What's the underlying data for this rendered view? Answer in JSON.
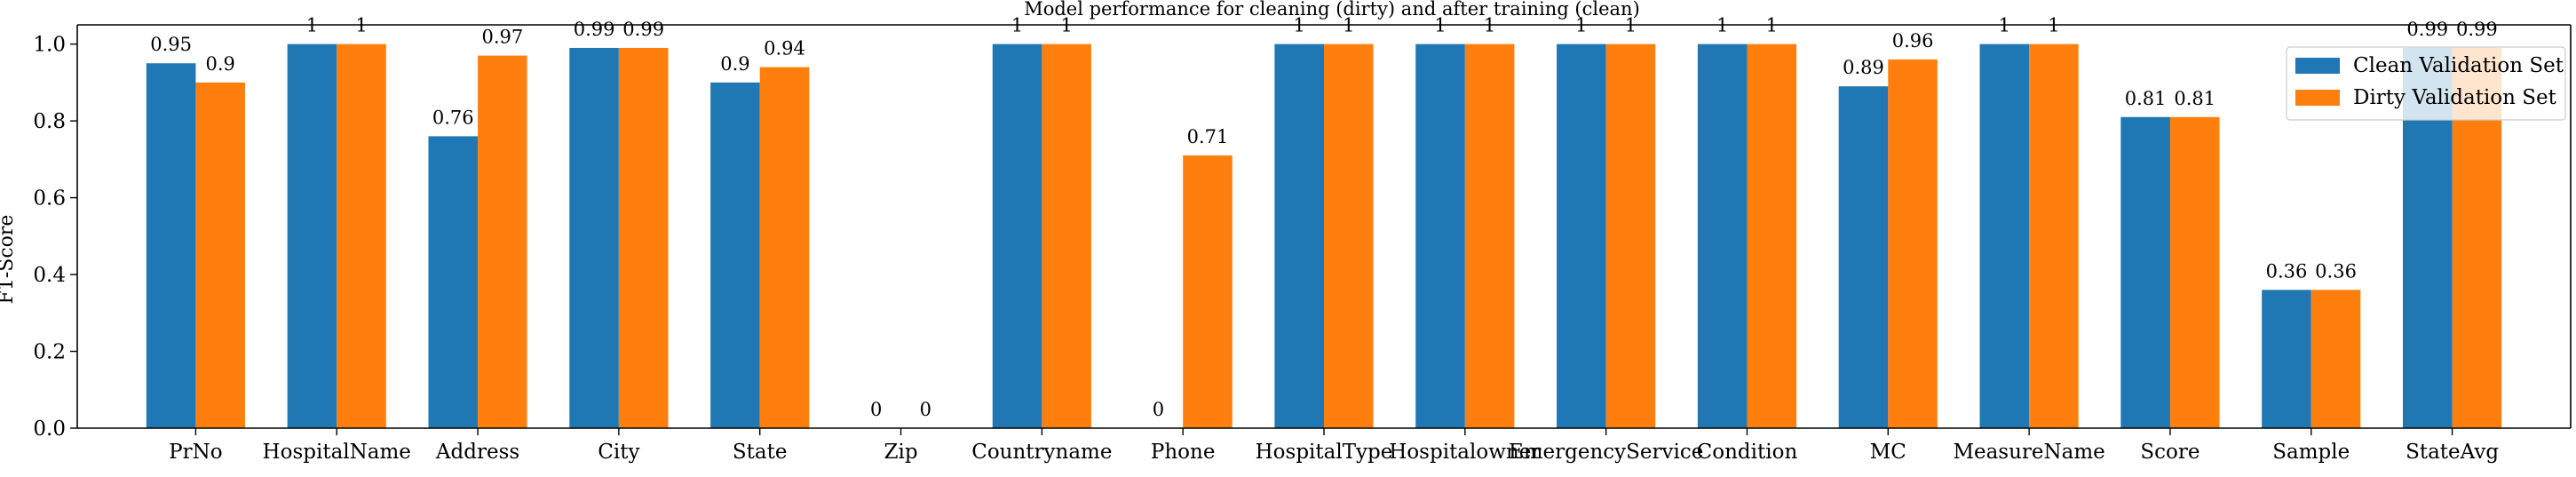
{
  "chart_data": {
    "type": "bar",
    "title": "Model performance for cleaning (dirty) and after training (clean)",
    "xlabel": "",
    "ylabel": "F1-Score",
    "ylim": [
      0,
      1.05
    ],
    "yticks": [
      0.0,
      0.2,
      0.4,
      0.6,
      0.8,
      1.0
    ],
    "ytick_labels": [
      "0.0",
      "0.2",
      "0.4",
      "0.6",
      "0.8",
      "1.0"
    ],
    "categories": [
      "PrNo",
      "HospitalName",
      "Address",
      "City",
      "State",
      "Zip",
      "Countryname",
      "Phone",
      "HospitalType",
      "Hospitalowner",
      "EmergencyService",
      "Condition",
      "MC",
      "MeasureName",
      "Score",
      "Sample",
      "StateAvg"
    ],
    "series": [
      {
        "name": "Clean Validation Set",
        "color": "#1f77b4",
        "values": [
          0.95,
          1,
          0.76,
          0.99,
          0.9,
          0,
          1,
          0,
          1,
          1,
          1,
          1,
          0.89,
          1,
          0.81,
          0.36,
          0.99
        ],
        "labels": [
          "0.95",
          "1",
          "0.76",
          "0.99",
          "0.9",
          "0",
          "1",
          "0",
          "1",
          "1",
          "1",
          "1",
          "0.89",
          "1",
          "0.81",
          "0.36",
          "0.99"
        ]
      },
      {
        "name": "Dirty Validation Set",
        "color": "#ff7f0e",
        "values": [
          0.9,
          1,
          0.97,
          0.99,
          0.94,
          0,
          1,
          0.71,
          1,
          1,
          1,
          1,
          0.96,
          1,
          0.81,
          0.36,
          0.99
        ],
        "labels": [
          "0.9",
          "1",
          "0.97",
          "0.99",
          "0.94",
          "0",
          "1",
          "0.71",
          "1",
          "1",
          "1",
          "1",
          "0.96",
          "1",
          "0.81",
          "0.36",
          "0.99"
        ]
      }
    ],
    "grid": false,
    "legend_position": "top-right"
  }
}
